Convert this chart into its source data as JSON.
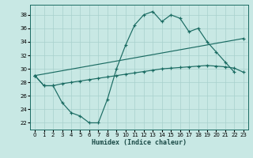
{
  "xlabel": "Humidex (Indice chaleur)",
  "bg_color": "#c8e8e4",
  "grid_color": "#a8d0cc",
  "line_color": "#1a6b62",
  "xlim": [
    -0.5,
    23.5
  ],
  "ylim": [
    21.0,
    39.5
  ],
  "xticks": [
    0,
    1,
    2,
    3,
    4,
    5,
    6,
    7,
    8,
    9,
    10,
    11,
    12,
    13,
    14,
    15,
    16,
    17,
    18,
    19,
    20,
    21,
    22,
    23
  ],
  "yticks": [
    22,
    24,
    26,
    28,
    30,
    32,
    34,
    36,
    38
  ],
  "line1_x": [
    0,
    1,
    2,
    3,
    4,
    5,
    6,
    7,
    8,
    9,
    10,
    11,
    12,
    13,
    14,
    15,
    16,
    17,
    18,
    19,
    20,
    21,
    22
  ],
  "line1_y": [
    29.0,
    27.5,
    27.5,
    25.0,
    23.5,
    23.0,
    22.0,
    22.0,
    25.5,
    30.0,
    33.5,
    36.5,
    38.0,
    38.5,
    37.0,
    38.0,
    37.5,
    35.5,
    36.0,
    34.0,
    32.5,
    31.0,
    29.5
  ],
  "line2_x": [
    0,
    1,
    2,
    3,
    4,
    5,
    6,
    7,
    8,
    9,
    10,
    11,
    12,
    13,
    14,
    15,
    16,
    17,
    18,
    19,
    20,
    21,
    22,
    23
  ],
  "line2_y": [
    29.0,
    27.5,
    27.5,
    27.8,
    28.0,
    28.2,
    28.4,
    28.6,
    28.8,
    29.0,
    29.2,
    29.4,
    29.6,
    29.8,
    30.0,
    30.1,
    30.2,
    30.3,
    30.4,
    30.5,
    30.4,
    30.3,
    30.1,
    29.5
  ],
  "line3_x": [
    0,
    23
  ],
  "line3_y": [
    29.0,
    34.5
  ]
}
